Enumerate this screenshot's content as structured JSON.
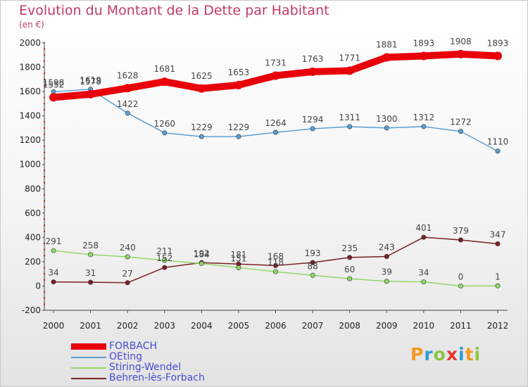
{
  "title": "Evolution du Montant de la Dette par Habitant",
  "subtitle": "(en €)",
  "logo": {
    "letters": [
      "P",
      "r",
      "o",
      "x",
      "i",
      "t",
      "i"
    ],
    "colors": [
      "#f39a1e",
      "#2e9bd6",
      "#8cc63f",
      "#e8362a",
      "#2e9bd6",
      "#f39a1e",
      "#8cc63f"
    ]
  },
  "chart_data": {
    "type": "line",
    "title": "Evolution du Montant de la Dette par Habitant",
    "ylabel": "(en €)",
    "xlabel": "",
    "x": [
      "2000",
      "2001",
      "2002",
      "2003",
      "2004",
      "2005",
      "2006",
      "2007",
      "2008",
      "2009",
      "2010",
      "2011",
      "2012"
    ],
    "ylim": [
      -200,
      2000
    ],
    "yticks": [
      "-200",
      "0",
      "200",
      "400",
      "600",
      "800",
      "1000",
      "1200",
      "1400",
      "1600",
      "1800",
      "2000"
    ],
    "grid": false,
    "legend_position": "bottom-left",
    "series": [
      {
        "name": "FORBACH",
        "color": "#e8000b",
        "values": [
          1552,
          1578,
          1628,
          1681,
          1625,
          1653,
          1731,
          1763,
          1771,
          1881,
          1893,
          1908,
          1893
        ],
        "labels": [
          "1552",
          "1578",
          "1628",
          "1681",
          "1625",
          "1653",
          "1731",
          "1763",
          "1771",
          "1881",
          "1893",
          "1908",
          "1893"
        ]
      },
      {
        "name": "OEting",
        "color": "#5a9fd4",
        "values": [
          1598,
          1619,
          1422,
          1260,
          1229,
          1229,
          1264,
          1294,
          1311,
          1300,
          1312,
          1272,
          1110
        ],
        "labels": [
          "1598",
          "1619",
          "1422",
          "1260",
          "1229",
          "1229",
          "1264",
          "1294",
          "1311",
          "1300",
          "1312",
          "1272",
          "1110"
        ]
      },
      {
        "name": "Stiring-Wendel",
        "color": "#8fd86a",
        "values": [
          291,
          258,
          240,
          211,
          184,
          151,
          118,
          88,
          60,
          39,
          34,
          0,
          1
        ],
        "labels": [
          "291",
          "258",
          "240",
          "211",
          "184",
          "151",
          "118",
          "88",
          "60",
          "39",
          "34",
          "0",
          "1"
        ]
      },
      {
        "name": "Behren-lès-Forbach",
        "color": "#7a1f26",
        "values": [
          34,
          31,
          27,
          152,
          192,
          181,
          168,
          193,
          235,
          243,
          401,
          379,
          347
        ],
        "labels": [
          "34",
          "31",
          "27",
          "152",
          "192",
          "181",
          "168",
          "193",
          "235",
          "243",
          "401",
          "379",
          "347"
        ]
      }
    ]
  }
}
